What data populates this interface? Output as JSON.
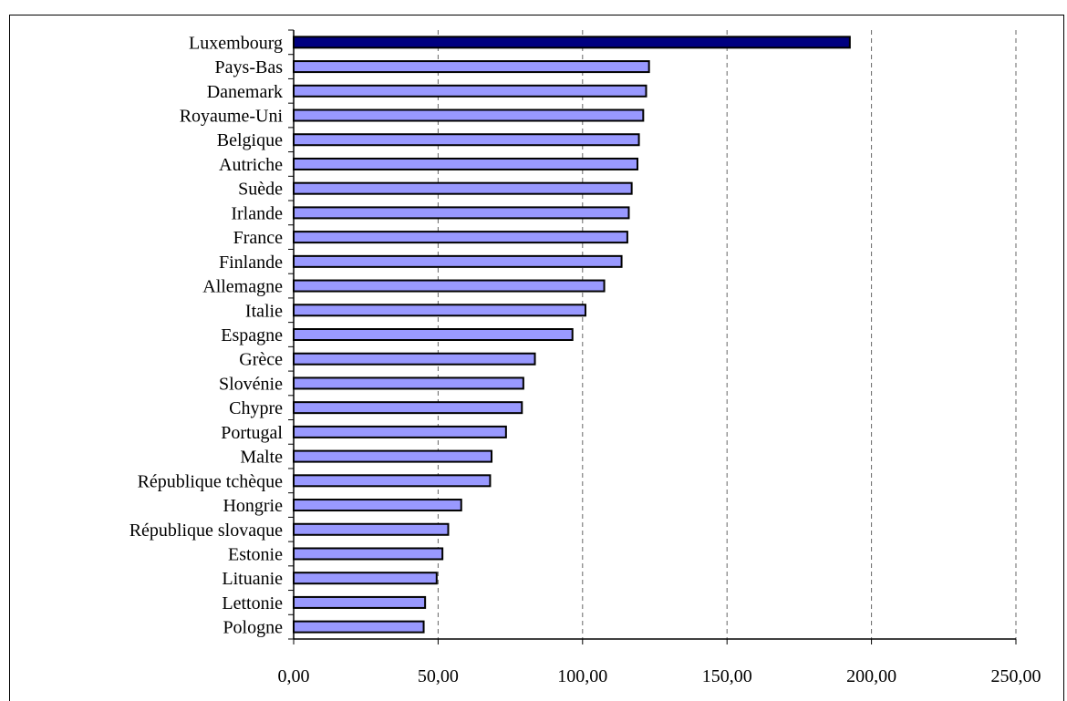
{
  "chart_data": {
    "type": "bar",
    "orientation": "horizontal",
    "categories": [
      "Luxembourg",
      "Pays-Bas",
      "Danemark",
      "Royaume-Uni",
      "Belgique",
      "Autriche",
      "Suède",
      "Irlande",
      "France",
      "Finlande",
      "Allemagne",
      "Italie",
      "Espagne",
      "Grèce",
      "Slovénie",
      "Chypre",
      "Portugal",
      "Malte",
      "République tchèque",
      "Hongrie",
      "République slovaque",
      "Estonie",
      "Lituanie",
      "Lettonie",
      "Pologne"
    ],
    "values": [
      192.5,
      123.0,
      122.0,
      121.0,
      119.5,
      119.0,
      117.0,
      116.0,
      115.5,
      113.5,
      107.5,
      101.0,
      96.5,
      83.5,
      79.5,
      79.0,
      73.5,
      68.5,
      68.0,
      58.0,
      53.5,
      51.5,
      49.5,
      45.5,
      45.0
    ],
    "highlight": "Luxembourg",
    "colors": {
      "bar": "#9999ff",
      "highlight_bar": "#000080",
      "bar_outline": "#000000",
      "grid": "#666666"
    },
    "xlim": [
      0,
      250
    ],
    "x_ticks": [
      0,
      50,
      100,
      150,
      200,
      250
    ],
    "x_tick_labels": [
      "0,00",
      "50,00",
      "100,00",
      "150,00",
      "200,00",
      "250,00"
    ],
    "grid": "vertical dashed",
    "title": "",
    "xlabel": "",
    "ylabel": ""
  }
}
